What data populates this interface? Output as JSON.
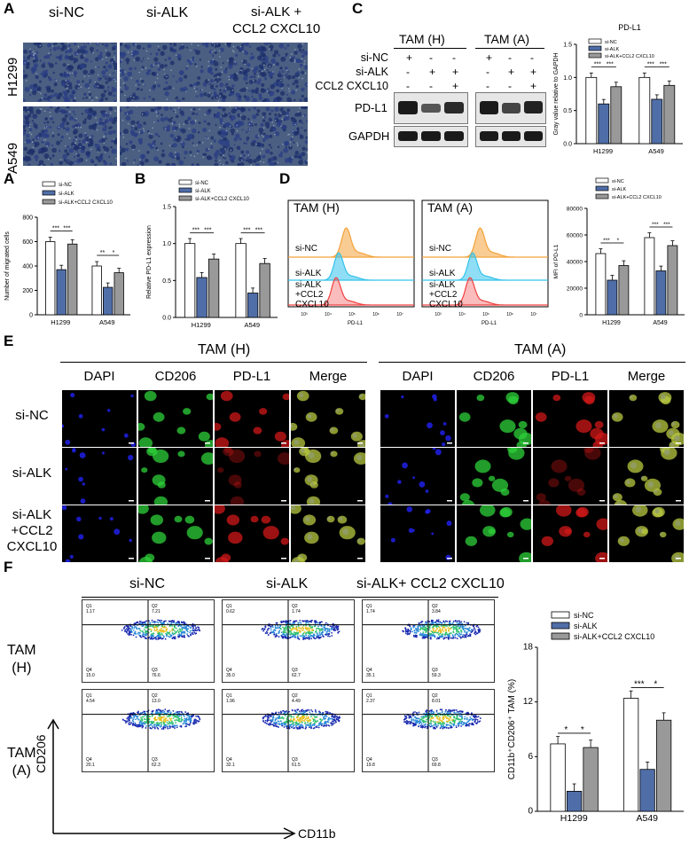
{
  "panel_letters": [
    "A",
    "B",
    "C",
    "D",
    "E",
    "F"
  ],
  "colors": {
    "si_nc": "#ffffff",
    "si_alk": "#4f6ea8",
    "si_alk_ccl": "#999999",
    "nc_hist": "#f4a23a",
    "alk_hist": "#33c3ec",
    "ccl_hist": "#f04040",
    "dapi": "#1a1adf",
    "cd206": "#22c02e",
    "pdl1": "#d01a1a"
  },
  "legend": [
    "si-NC",
    "si-ALK",
    "si-ALK+CCL2 CXCL10"
  ],
  "panelA": {
    "columns": [
      "si-NC",
      "si-ALK",
      "si-ALK +\nCCL2 CXCL10"
    ],
    "rows": [
      "H1299",
      "A549"
    ]
  },
  "panelA_chart": {
    "ylabel": "Number of migrated cells",
    "ticks": [
      "0",
      "200",
      "400",
      "600",
      "800"
    ],
    "signif": {
      "H1299": [
        "***",
        "***"
      ],
      "A549": [
        "**",
        "*"
      ]
    }
  },
  "panelB_chart": {
    "ylabel": "Relative PD-L1 expression",
    "ticks": [
      "0.0",
      "0.5",
      "1.0",
      "1.5"
    ],
    "signif": {
      "H1299": [
        "***",
        "***"
      ],
      "A549": [
        "***",
        "***"
      ]
    }
  },
  "panelC": {
    "groups": [
      "TAM (H)",
      "TAM (A)"
    ],
    "conditions": [
      {
        "label": "si-NC",
        "marks": [
          "+",
          "-",
          "-",
          "+",
          "-",
          "-"
        ]
      },
      {
        "label": "si-ALK",
        "marks": [
          "-",
          "+",
          "+",
          "-",
          "+",
          "+"
        ]
      },
      {
        "label": "CCL2 CXCL10",
        "marks": [
          "-",
          "-",
          "+",
          "-",
          "-",
          "+"
        ]
      }
    ],
    "proteins": [
      "PD-L1",
      "GAPDH"
    ]
  },
  "panelC_chart": {
    "title": "PD-L1",
    "ylabel": "Gray value relative to GAPDH",
    "ticks": [
      "0.0",
      "0.5",
      "1.0",
      "1.5"
    ],
    "signif": {
      "H1299": [
        "***",
        "***"
      ],
      "A549": [
        "***",
        "***"
      ]
    }
  },
  "panelD": {
    "titles": [
      "TAM (H)",
      "TAM (A)"
    ],
    "curve_labels": [
      "si-NC",
      "si-ALK",
      "si-ALK\n+CCL2\nCXCL10"
    ],
    "xaxis": "PD-L1",
    "xticks": [
      "10³",
      "10⁴",
      "10⁵",
      "10⁶",
      "10⁷"
    ]
  },
  "panelD_chart": {
    "ylabel": "MFI of PD-L1",
    "ticks": [
      "0",
      "20000",
      "40000",
      "60000",
      "80000"
    ],
    "signif": {
      "H1299": [
        "***",
        "*"
      ],
      "A549": [
        "***",
        "***"
      ]
    }
  },
  "panelE": {
    "groups": [
      "TAM (H)",
      "TAM (A)"
    ],
    "channels": [
      "DAPI",
      "CD206",
      "PD-L1",
      "Merge"
    ],
    "rows": [
      "si-NC",
      "si-ALK",
      "si-ALK\n+CCL2\nCXCL10"
    ]
  },
  "panelF": {
    "columns": [
      "si-NC",
      "si-ALK",
      "si-ALK+ CCL2 CXCL10"
    ],
    "rows": [
      "TAM\n(H)",
      "TAM\n(A)"
    ],
    "yaxis": "CD206",
    "xaxis": "CD11b",
    "quadrants": [
      [
        [
          "1.17",
          "7.21",
          "15.0",
          "76.6"
        ],
        [
          "0.62",
          "1.74",
          "35.0",
          "62.7"
        ],
        [
          "1.74",
          "3.84",
          "35.1",
          "59.3"
        ]
      ],
      [
        [
          "4.54",
          "13.0",
          "20.1",
          "62.3"
        ],
        [
          "1.96",
          "4.49",
          "32.1",
          "61.5"
        ],
        [
          "2.37",
          "8.01",
          "19.8",
          "69.8"
        ]
      ]
    ],
    "qnames": [
      "Q1",
      "Q2",
      "Q4",
      "Q3"
    ]
  },
  "panelF_chart": {
    "ylabel": "CD11b⁺CD206⁺ TAM (%)",
    "ticks": [
      "0",
      "6",
      "12",
      "18"
    ],
    "signif": {
      "H1299": [
        "*",
        "*"
      ],
      "A549": [
        "***",
        "*"
      ]
    }
  },
  "chart_data": [
    {
      "type": "bar",
      "categories": [
        "H1299",
        "A549"
      ],
      "ylabel": "Number of migrated cells",
      "ylim": [
        0,
        800
      ],
      "series": [
        {
          "name": "si-NC",
          "values": [
            600,
            400
          ]
        },
        {
          "name": "si-ALK",
          "values": [
            370,
            225
          ]
        },
        {
          "name": "si-ALK+CCL2 CXCL10",
          "values": [
            580,
            345
          ]
        }
      ]
    },
    {
      "type": "bar",
      "categories": [
        "H1299",
        "A549"
      ],
      "ylabel": "Relative PD-L1 expression",
      "ylim": [
        0,
        1.5
      ],
      "series": [
        {
          "name": "si-NC",
          "values": [
            1.0,
            1.0
          ]
        },
        {
          "name": "si-ALK",
          "values": [
            0.54,
            0.33
          ]
        },
        {
          "name": "si-ALK+CCL2 CXCL10",
          "values": [
            0.79,
            0.73
          ]
        }
      ]
    },
    {
      "type": "bar",
      "title": "PD-L1",
      "categories": [
        "H1299",
        "A549"
      ],
      "ylabel": "Gray value relative to GAPDH",
      "ylim": [
        0,
        1.5
      ],
      "series": [
        {
          "name": "si-NC",
          "values": [
            1.0,
            1.0
          ]
        },
        {
          "name": "si-ALK",
          "values": [
            0.6,
            0.67
          ]
        },
        {
          "name": "si-ALK+CCL2 CXCL10",
          "values": [
            0.86,
            0.88
          ]
        }
      ]
    },
    {
      "type": "bar",
      "categories": [
        "H1299",
        "A549"
      ],
      "ylabel": "MFI of PD-L1",
      "ylim": [
        0,
        80000
      ],
      "series": [
        {
          "name": "si-NC",
          "values": [
            46000,
            58000
          ]
        },
        {
          "name": "si-ALK",
          "values": [
            26000,
            33000
          ]
        },
        {
          "name": "si-ALK+CCL2 CXCL10",
          "values": [
            37000,
            52000
          ]
        }
      ]
    },
    {
      "type": "bar",
      "categories": [
        "H1299",
        "A549"
      ],
      "ylabel": "CD11b⁺CD206⁺ TAM (%)",
      "ylim": [
        0,
        18
      ],
      "series": [
        {
          "name": "si-NC",
          "values": [
            7.4,
            12.4
          ]
        },
        {
          "name": "si-ALK",
          "values": [
            2.2,
            4.6
          ]
        },
        {
          "name": "si-ALK+CCL2 CXCL10",
          "values": [
            7.0,
            10.0
          ]
        }
      ]
    }
  ]
}
